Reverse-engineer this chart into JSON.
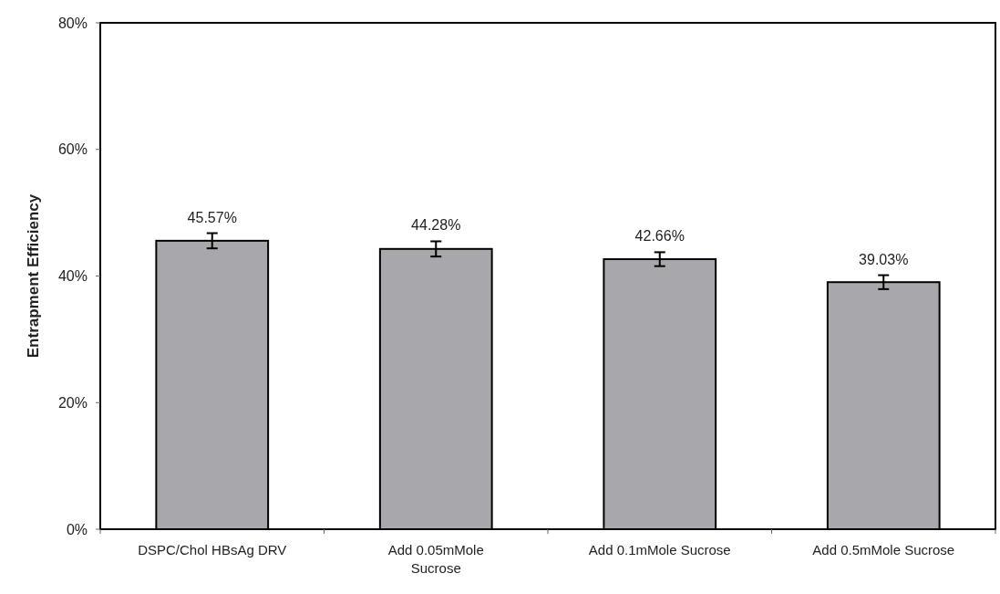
{
  "chart_data": {
    "type": "bar",
    "ylabel": "Entrapment Efficiency",
    "categories": [
      "DSPC/Chol HBsAg DRV",
      "Add 0.05mMole Sucrose",
      "Add 0.1mMole Sucrose",
      "Add 0.5mMole Sucrose"
    ],
    "values": [
      45.57,
      44.28,
      42.66,
      39.03
    ],
    "errors": [
      1.2,
      1.2,
      1.1,
      1.1
    ],
    "value_labels": [
      "45.57%",
      "44.28%",
      "42.66%",
      "39.03%"
    ],
    "color": "#a8a8ac",
    "ylim": [
      0,
      80
    ],
    "yticks": [
      {
        "value": 0,
        "label": "0%"
      },
      {
        "value": 20,
        "label": "20%"
      },
      {
        "value": 40,
        "label": "40%"
      },
      {
        "value": 60,
        "label": "60%"
      },
      {
        "value": 80,
        "label": "80%"
      }
    ],
    "grid": false
  }
}
